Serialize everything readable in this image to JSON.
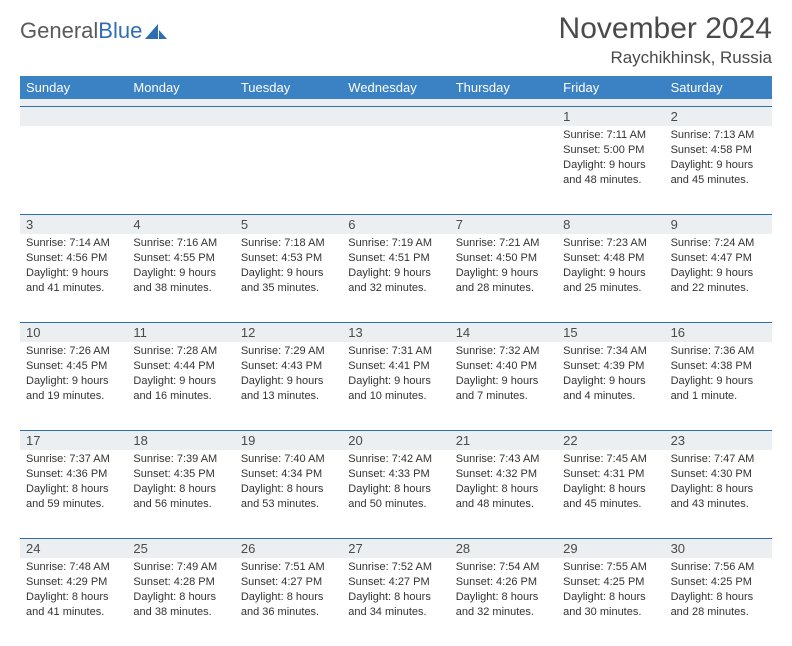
{
  "logo": {
    "text_gray": "General",
    "text_blue": "Blue"
  },
  "title": "November 2024",
  "location": "Raychikhinsk, Russia",
  "colors": {
    "header_bg": "#3b82c4",
    "header_text": "#ffffff",
    "daynum_bg": "#eceff1",
    "rule": "#2f6fb1",
    "text": "#333333",
    "title_text": "#4a4a4a",
    "logo_gray": "#5a5a5a",
    "logo_blue": "#2f6fb1",
    "page_bg": "#ffffff"
  },
  "weekdays": [
    "Sunday",
    "Monday",
    "Tuesday",
    "Wednesday",
    "Thursday",
    "Friday",
    "Saturday"
  ],
  "weeks": [
    [
      {
        "n": "",
        "sr": "",
        "ss": "",
        "d1": "",
        "d2": ""
      },
      {
        "n": "",
        "sr": "",
        "ss": "",
        "d1": "",
        "d2": ""
      },
      {
        "n": "",
        "sr": "",
        "ss": "",
        "d1": "",
        "d2": ""
      },
      {
        "n": "",
        "sr": "",
        "ss": "",
        "d1": "",
        "d2": ""
      },
      {
        "n": "",
        "sr": "",
        "ss": "",
        "d1": "",
        "d2": ""
      },
      {
        "n": "1",
        "sr": "Sunrise: 7:11 AM",
        "ss": "Sunset: 5:00 PM",
        "d1": "Daylight: 9 hours",
        "d2": "and 48 minutes."
      },
      {
        "n": "2",
        "sr": "Sunrise: 7:13 AM",
        "ss": "Sunset: 4:58 PM",
        "d1": "Daylight: 9 hours",
        "d2": "and 45 minutes."
      }
    ],
    [
      {
        "n": "3",
        "sr": "Sunrise: 7:14 AM",
        "ss": "Sunset: 4:56 PM",
        "d1": "Daylight: 9 hours",
        "d2": "and 41 minutes."
      },
      {
        "n": "4",
        "sr": "Sunrise: 7:16 AM",
        "ss": "Sunset: 4:55 PM",
        "d1": "Daylight: 9 hours",
        "d2": "and 38 minutes."
      },
      {
        "n": "5",
        "sr": "Sunrise: 7:18 AM",
        "ss": "Sunset: 4:53 PM",
        "d1": "Daylight: 9 hours",
        "d2": "and 35 minutes."
      },
      {
        "n": "6",
        "sr": "Sunrise: 7:19 AM",
        "ss": "Sunset: 4:51 PM",
        "d1": "Daylight: 9 hours",
        "d2": "and 32 minutes."
      },
      {
        "n": "7",
        "sr": "Sunrise: 7:21 AM",
        "ss": "Sunset: 4:50 PM",
        "d1": "Daylight: 9 hours",
        "d2": "and 28 minutes."
      },
      {
        "n": "8",
        "sr": "Sunrise: 7:23 AM",
        "ss": "Sunset: 4:48 PM",
        "d1": "Daylight: 9 hours",
        "d2": "and 25 minutes."
      },
      {
        "n": "9",
        "sr": "Sunrise: 7:24 AM",
        "ss": "Sunset: 4:47 PM",
        "d1": "Daylight: 9 hours",
        "d2": "and 22 minutes."
      }
    ],
    [
      {
        "n": "10",
        "sr": "Sunrise: 7:26 AM",
        "ss": "Sunset: 4:45 PM",
        "d1": "Daylight: 9 hours",
        "d2": "and 19 minutes."
      },
      {
        "n": "11",
        "sr": "Sunrise: 7:28 AM",
        "ss": "Sunset: 4:44 PM",
        "d1": "Daylight: 9 hours",
        "d2": "and 16 minutes."
      },
      {
        "n": "12",
        "sr": "Sunrise: 7:29 AM",
        "ss": "Sunset: 4:43 PM",
        "d1": "Daylight: 9 hours",
        "d2": "and 13 minutes."
      },
      {
        "n": "13",
        "sr": "Sunrise: 7:31 AM",
        "ss": "Sunset: 4:41 PM",
        "d1": "Daylight: 9 hours",
        "d2": "and 10 minutes."
      },
      {
        "n": "14",
        "sr": "Sunrise: 7:32 AM",
        "ss": "Sunset: 4:40 PM",
        "d1": "Daylight: 9 hours",
        "d2": "and 7 minutes."
      },
      {
        "n": "15",
        "sr": "Sunrise: 7:34 AM",
        "ss": "Sunset: 4:39 PM",
        "d1": "Daylight: 9 hours",
        "d2": "and 4 minutes."
      },
      {
        "n": "16",
        "sr": "Sunrise: 7:36 AM",
        "ss": "Sunset: 4:38 PM",
        "d1": "Daylight: 9 hours",
        "d2": "and 1 minute."
      }
    ],
    [
      {
        "n": "17",
        "sr": "Sunrise: 7:37 AM",
        "ss": "Sunset: 4:36 PM",
        "d1": "Daylight: 8 hours",
        "d2": "and 59 minutes."
      },
      {
        "n": "18",
        "sr": "Sunrise: 7:39 AM",
        "ss": "Sunset: 4:35 PM",
        "d1": "Daylight: 8 hours",
        "d2": "and 56 minutes."
      },
      {
        "n": "19",
        "sr": "Sunrise: 7:40 AM",
        "ss": "Sunset: 4:34 PM",
        "d1": "Daylight: 8 hours",
        "d2": "and 53 minutes."
      },
      {
        "n": "20",
        "sr": "Sunrise: 7:42 AM",
        "ss": "Sunset: 4:33 PM",
        "d1": "Daylight: 8 hours",
        "d2": "and 50 minutes."
      },
      {
        "n": "21",
        "sr": "Sunrise: 7:43 AM",
        "ss": "Sunset: 4:32 PM",
        "d1": "Daylight: 8 hours",
        "d2": "and 48 minutes."
      },
      {
        "n": "22",
        "sr": "Sunrise: 7:45 AM",
        "ss": "Sunset: 4:31 PM",
        "d1": "Daylight: 8 hours",
        "d2": "and 45 minutes."
      },
      {
        "n": "23",
        "sr": "Sunrise: 7:47 AM",
        "ss": "Sunset: 4:30 PM",
        "d1": "Daylight: 8 hours",
        "d2": "and 43 minutes."
      }
    ],
    [
      {
        "n": "24",
        "sr": "Sunrise: 7:48 AM",
        "ss": "Sunset: 4:29 PM",
        "d1": "Daylight: 8 hours",
        "d2": "and 41 minutes."
      },
      {
        "n": "25",
        "sr": "Sunrise: 7:49 AM",
        "ss": "Sunset: 4:28 PM",
        "d1": "Daylight: 8 hours",
        "d2": "and 38 minutes."
      },
      {
        "n": "26",
        "sr": "Sunrise: 7:51 AM",
        "ss": "Sunset: 4:27 PM",
        "d1": "Daylight: 8 hours",
        "d2": "and 36 minutes."
      },
      {
        "n": "27",
        "sr": "Sunrise: 7:52 AM",
        "ss": "Sunset: 4:27 PM",
        "d1": "Daylight: 8 hours",
        "d2": "and 34 minutes."
      },
      {
        "n": "28",
        "sr": "Sunrise: 7:54 AM",
        "ss": "Sunset: 4:26 PM",
        "d1": "Daylight: 8 hours",
        "d2": "and 32 minutes."
      },
      {
        "n": "29",
        "sr": "Sunrise: 7:55 AM",
        "ss": "Sunset: 4:25 PM",
        "d1": "Daylight: 8 hours",
        "d2": "and 30 minutes."
      },
      {
        "n": "30",
        "sr": "Sunrise: 7:56 AM",
        "ss": "Sunset: 4:25 PM",
        "d1": "Daylight: 8 hours",
        "d2": "and 28 minutes."
      }
    ]
  ]
}
